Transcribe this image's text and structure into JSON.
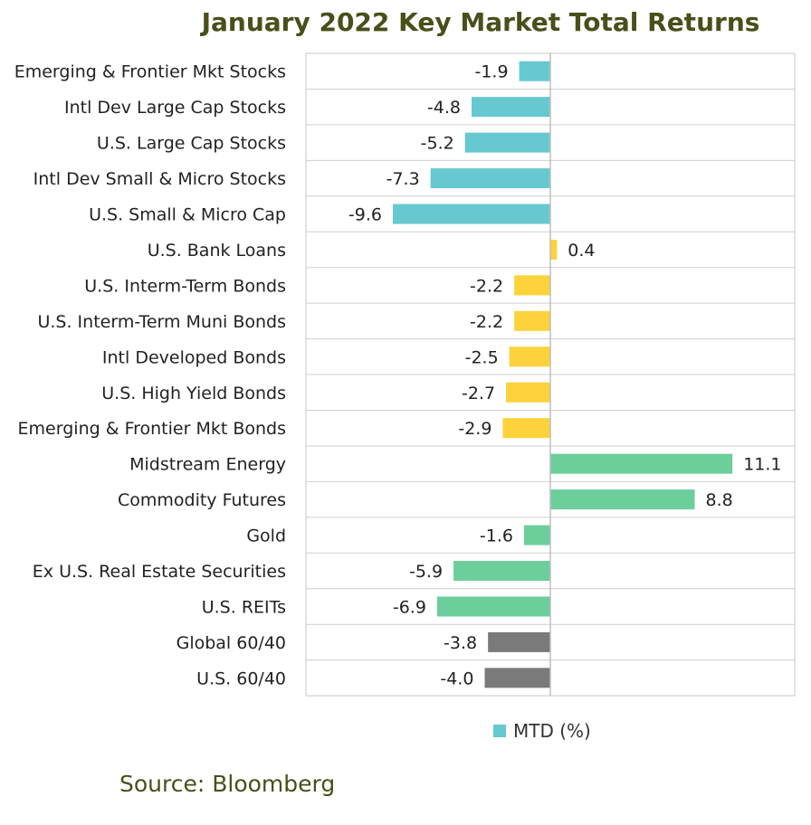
{
  "chart_data": {
    "type": "bar",
    "orientation": "horizontal",
    "title": "January 2022 Key Market Total Returns",
    "xlabel": "",
    "ylabel": "",
    "xlim": [
      -10,
      12
    ],
    "grid": "horizontal row separators",
    "legend_position": "bottom",
    "series": [
      {
        "name": "MTD (%)",
        "color": "#66c9cf"
      }
    ],
    "categories": [
      "Emerging & Frontier Mkt Stocks",
      "Intl Dev Large Cap Stocks",
      "U.S. Large Cap Stocks",
      "Intl Dev Small & Micro Stocks",
      "U.S. Small & Micro Cap",
      "U.S. Bank Loans",
      "U.S. Interm-Term Bonds",
      "U.S. Interm-Term Muni Bonds",
      "Intl Developed Bonds",
      "U.S. High Yield Bonds",
      "Emerging & Frontier Mkt Bonds",
      "Midstream Energy",
      "Commodity Futures",
      "Gold",
      "Ex U.S. Real Estate Securities",
      "U.S. REITs",
      "Global 60/40",
      "U.S. 60/40"
    ],
    "values": [
      -1.9,
      -4.8,
      -5.2,
      -7.3,
      -9.6,
      0.4,
      -2.2,
      -2.2,
      -2.5,
      -2.7,
      -2.9,
      11.1,
      8.8,
      -1.6,
      -5.9,
      -6.9,
      -3.8,
      -4.0
    ],
    "value_labels": [
      "-1.9",
      "-4.8",
      "-5.2",
      "-7.3",
      "-9.6",
      "0.4",
      "-2.2",
      "-2.2",
      "-2.5",
      "-2.7",
      "-2.9",
      "11.1",
      "8.8",
      "-1.6",
      "-5.9",
      "-6.9",
      "-3.8",
      "-4.0"
    ],
    "bar_colors": [
      "#66c9cf",
      "#66c9cf",
      "#66c9cf",
      "#66c9cf",
      "#66c9cf",
      "#fdd23a",
      "#fdd23a",
      "#fdd23a",
      "#fdd23a",
      "#fdd23a",
      "#fdd23a",
      "#6cce9b",
      "#6cce9b",
      "#6cce9b",
      "#6cce9b",
      "#6cce9b",
      "#7a7a7a",
      "#7a7a7a"
    ]
  },
  "source_note": "Source: Bloomberg"
}
